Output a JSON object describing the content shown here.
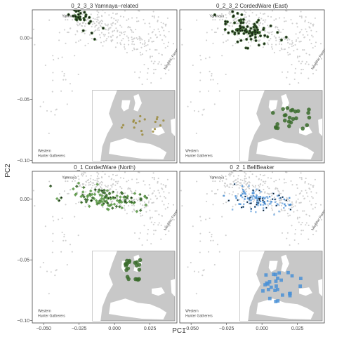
{
  "chart_data": {
    "type": "scatter",
    "xlabel": "PC1",
    "ylabel": "PC2",
    "x_ticks": [
      {
        "value": -0.05,
        "label": "−0.050"
      },
      {
        "value": -0.025,
        "label": "−0.025"
      },
      {
        "value": 0.0,
        "label": "0.000"
      },
      {
        "value": 0.025,
        "label": "0.025"
      }
    ],
    "y_ticks": [
      {
        "value": 0.0,
        "label": "0.00"
      },
      {
        "value": -0.05,
        "label": "−0.05"
      },
      {
        "value": -0.1,
        "label": "−0.10"
      }
    ],
    "xlim": [
      -0.058,
      0.044
    ],
    "ylim": [
      -0.102,
      0.023
    ],
    "grid": false,
    "legend": "none",
    "annotations": {
      "yamnaya": "Yamnaya",
      "farmers": "Neolithic Farmers",
      "whg_line1": "Western",
      "whg_line2": "Hunter Gatherers"
    },
    "colors": {
      "background_points": "#cfcfcf",
      "dark_green": "#3a6b2c",
      "mid_green": "#5e9a4a",
      "blue": "#4a90d6",
      "light_blue": "#7fb0e2",
      "black": "#111111",
      "map_land": "#c8c8c8",
      "map_sea": "#ffffff"
    },
    "panels": [
      {
        "title": "0_2_3_3 Yamnaya−related",
        "marker_color": "#3a6b2c",
        "marker_style": "green-star",
        "cluster": {
          "center": [
            -0.025,
            0.018
          ],
          "spread": [
            0.003,
            0.003
          ],
          "n": 26
        },
        "satellites": [
          {
            "x": -0.018,
            "y": 0.012
          },
          {
            "x": -0.016,
            "y": 0.004
          },
          {
            "x": -0.014,
            "y": -0.001
          },
          {
            "x": -0.022,
            "y": 0.006
          },
          {
            "x": -0.008,
            "y": 0.008
          }
        ]
      },
      {
        "title": "0_2_3_2 CordedWare (East)",
        "marker_color": "#3a6b2c",
        "marker_style": "green-star",
        "cluster": {
          "center": [
            -0.012,
            0.008
          ],
          "spread": [
            0.01,
            0.006
          ],
          "n": 85
        },
        "satellites": [
          {
            "x": 0.002,
            "y": 0.002
          },
          {
            "x": 0.004,
            "y": 0.001
          },
          {
            "x": -0.02,
            "y": 0.018
          }
        ]
      },
      {
        "title": "0_1 CordedWare (North)",
        "marker_color": "#5e9a4a",
        "marker_style": "green-diamond",
        "cluster": {
          "center": [
            -0.006,
            0.001
          ],
          "spread": [
            0.013,
            0.004
          ],
          "n": 120
        },
        "satellites": []
      },
      {
        "title": "0_2_1 BellBeaker",
        "marker_color": "#4a90d6",
        "marker_style": "blue-square",
        "cluster": {
          "center": [
            -0.003,
            -0.001
          ],
          "spread": [
            0.011,
            0.004
          ],
          "n": 125
        },
        "satellites": []
      }
    ]
  }
}
